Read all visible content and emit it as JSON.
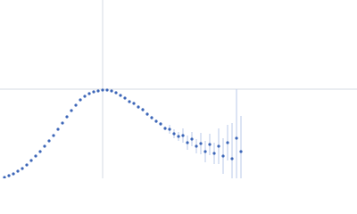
{
  "chart_data": {
    "type": "scatter",
    "color": "#3d66b8",
    "error_color": "#b9c9e8",
    "xlim": [
      0,
      400
    ],
    "ylim": [
      0,
      200
    ],
    "xticks": [
      115
    ],
    "yticks": [
      100
    ],
    "grid": true,
    "x": [
      5,
      10,
      15,
      20,
      25,
      30,
      35,
      40,
      45,
      50,
      55,
      60,
      65,
      70,
      75,
      80,
      85,
      90,
      95,
      100,
      105,
      110,
      115,
      120,
      125,
      130,
      135,
      140,
      145,
      150,
      155,
      160,
      165,
      170,
      175,
      180,
      185,
      190,
      195,
      200,
      205,
      210,
      215,
      220,
      225,
      230,
      235,
      240,
      245,
      250,
      255,
      260,
      265,
      270
    ],
    "values": [
      1,
      3,
      5,
      8,
      11,
      15,
      20,
      25,
      30,
      36,
      42,
      48,
      55,
      62,
      69,
      76,
      82,
      88,
      92,
      95,
      97,
      98,
      99,
      99,
      98,
      96,
      93,
      90,
      86,
      84,
      80,
      77,
      72,
      68,
      64,
      61,
      56,
      55,
      50,
      47,
      48,
      40,
      44,
      36,
      39,
      30,
      38,
      28,
      36,
      25,
      40,
      22,
      45,
      30
    ],
    "errors": [
      1,
      1,
      1,
      1,
      1,
      1,
      1,
      1,
      1,
      1,
      1,
      1,
      1,
      1,
      1,
      1,
      1,
      1,
      1,
      1,
      1,
      1,
      1,
      1,
      1,
      1,
      1,
      1,
      1,
      1,
      2,
      2,
      2,
      2,
      2,
      2,
      2,
      5,
      5,
      5,
      8,
      8,
      8,
      8,
      12,
      12,
      12,
      12,
      20,
      20,
      20,
      40,
      55,
      40
    ]
  }
}
